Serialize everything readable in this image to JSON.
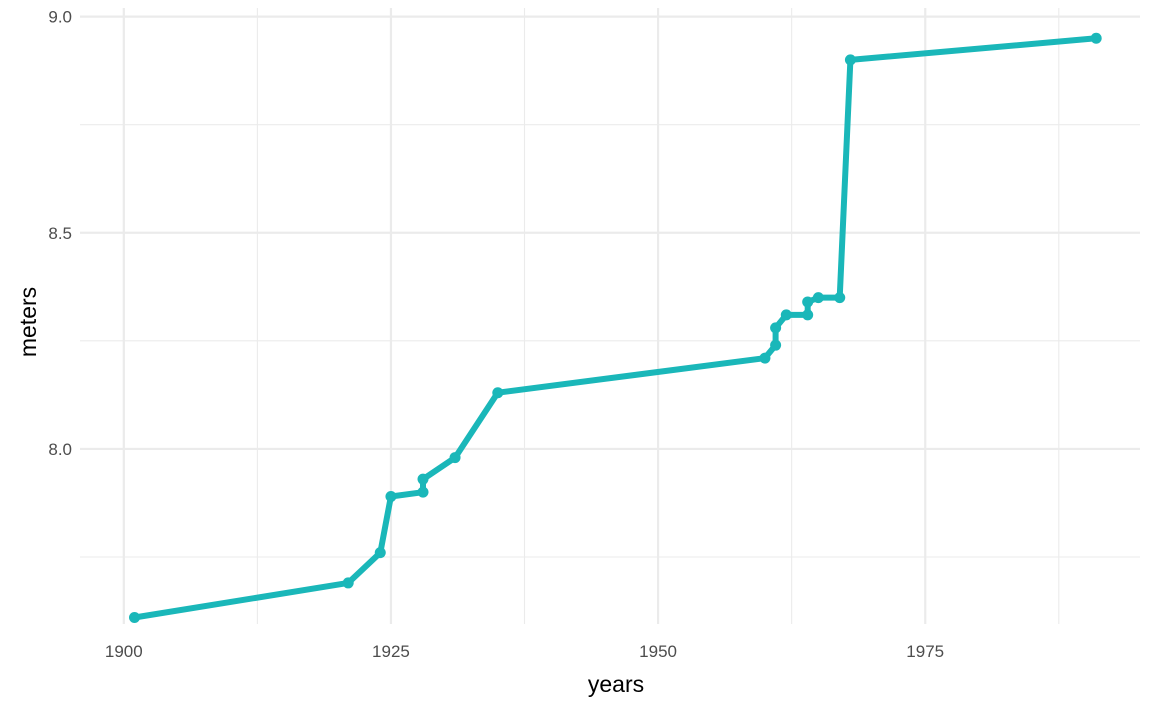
{
  "chart_data": {
    "type": "line",
    "title": "",
    "xlabel": "years",
    "ylabel": "meters",
    "xlim": [
      1895.9,
      1995.1
    ],
    "ylim": [
      7.595,
      9.02
    ],
    "x_ticks": [
      1900,
      1925,
      1950,
      1975
    ],
    "y_ticks": [
      8.0,
      8.5,
      9.0
    ],
    "x_tick_labels": [
      "1900",
      "1925",
      "1950",
      "1975"
    ],
    "y_tick_labels": [
      "8.0",
      "8.5",
      "9.0"
    ],
    "grid": true,
    "legend": "none",
    "series": [
      {
        "color": "#1ab7b9",
        "x": [
          1901,
          1921,
          1924,
          1925,
          1928,
          1928,
          1931,
          1935,
          1960,
          1961,
          1961,
          1962,
          1964,
          1964,
          1965,
          1967,
          1968,
          1991
        ],
        "y": [
          7.61,
          7.69,
          7.76,
          7.89,
          7.9,
          7.93,
          7.98,
          8.13,
          8.21,
          8.24,
          8.28,
          8.31,
          8.31,
          8.34,
          8.35,
          8.35,
          8.9,
          8.95
        ]
      }
    ]
  }
}
